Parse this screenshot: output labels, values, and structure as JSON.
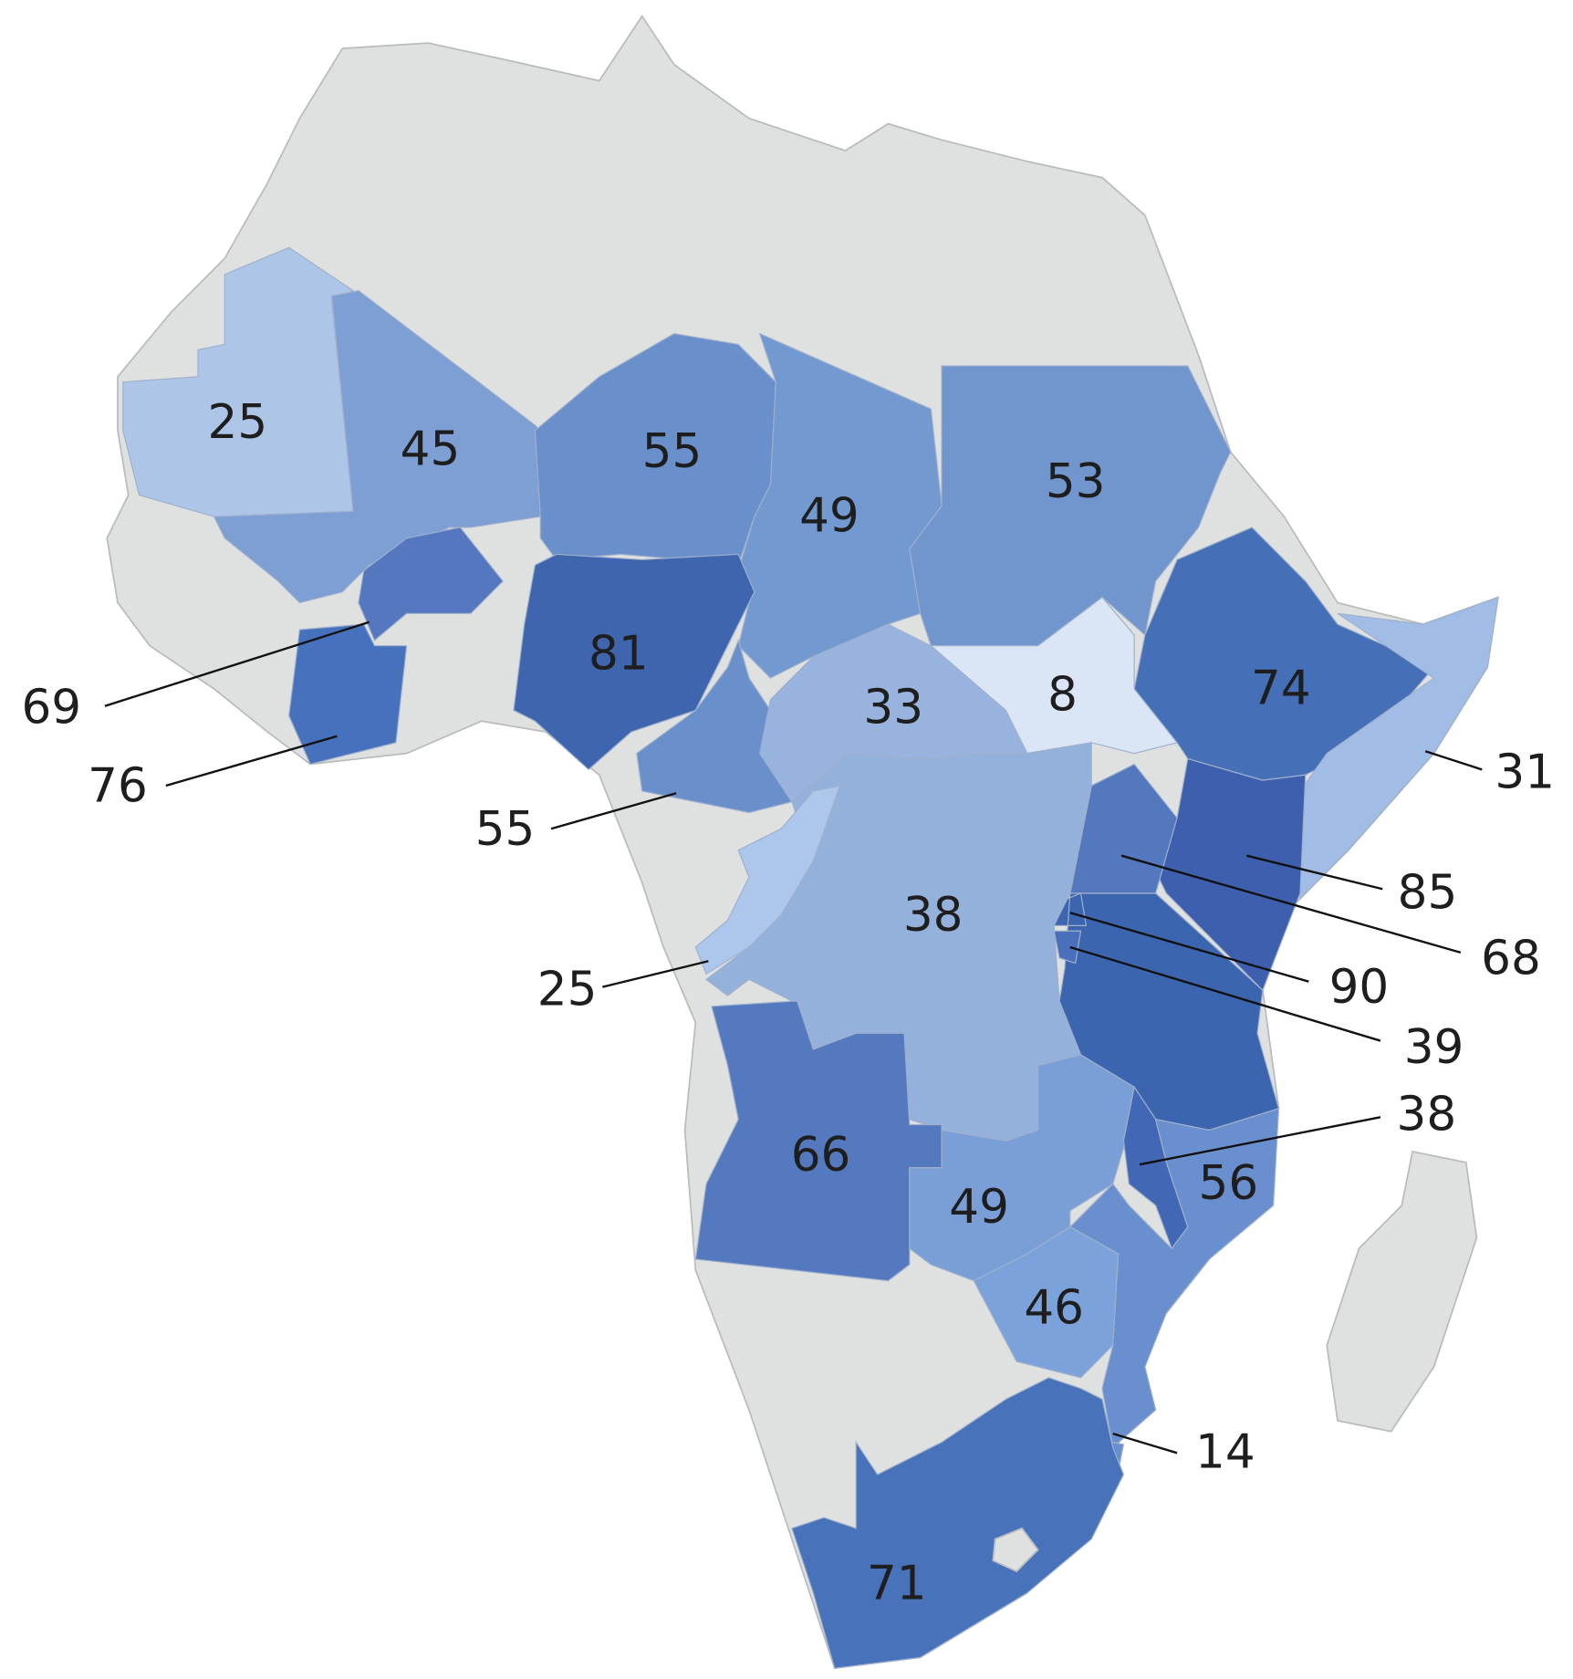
{
  "regions": [
    {
      "value": 25,
      "color": "#adc6e8"
    },
    {
      "value": 45,
      "color": "#7d9fd3"
    },
    {
      "value": 55,
      "color": "#6a90cc"
    },
    {
      "value": 49,
      "color": "#7399d1"
    },
    {
      "value": 53,
      "color": "#7096cd"
    },
    {
      "value": 69,
      "color": "#5477c0"
    },
    {
      "value": 76,
      "color": "#4671bc"
    },
    {
      "value": 81,
      "color": "#3e65ae"
    },
    {
      "value": 55,
      "color": "#6a90cc"
    },
    {
      "value": 33,
      "color": "#98b4de"
    },
    {
      "value": 8,
      "color": "#dae6f5"
    },
    {
      "value": 74,
      "color": "#4570b8"
    },
    {
      "value": 31,
      "color": "#a1bde5"
    },
    {
      "value": 85,
      "color": "#3d5fad"
    },
    {
      "value": 68,
      "color": "#5478bd"
    },
    {
      "value": 90,
      "color": "#3c65b0"
    },
    {
      "value": 39,
      "color": "#4a70bb"
    },
    {
      "value": 38,
      "color": "#94b1dc"
    },
    {
      "value": 25,
      "color": "#adc6ec"
    },
    {
      "value": 66,
      "color": "#5479bf"
    },
    {
      "value": 49,
      "color": "#7a9fd6"
    },
    {
      "value": 38,
      "color": "#4268b5"
    },
    {
      "value": 56,
      "color": "#6a8fcf"
    },
    {
      "value": 46,
      "color": "#7ba2da"
    },
    {
      "value": 14,
      "color": "#6a8fcf"
    },
    {
      "value": 71,
      "color": "#4873bb"
    }
  ]
}
